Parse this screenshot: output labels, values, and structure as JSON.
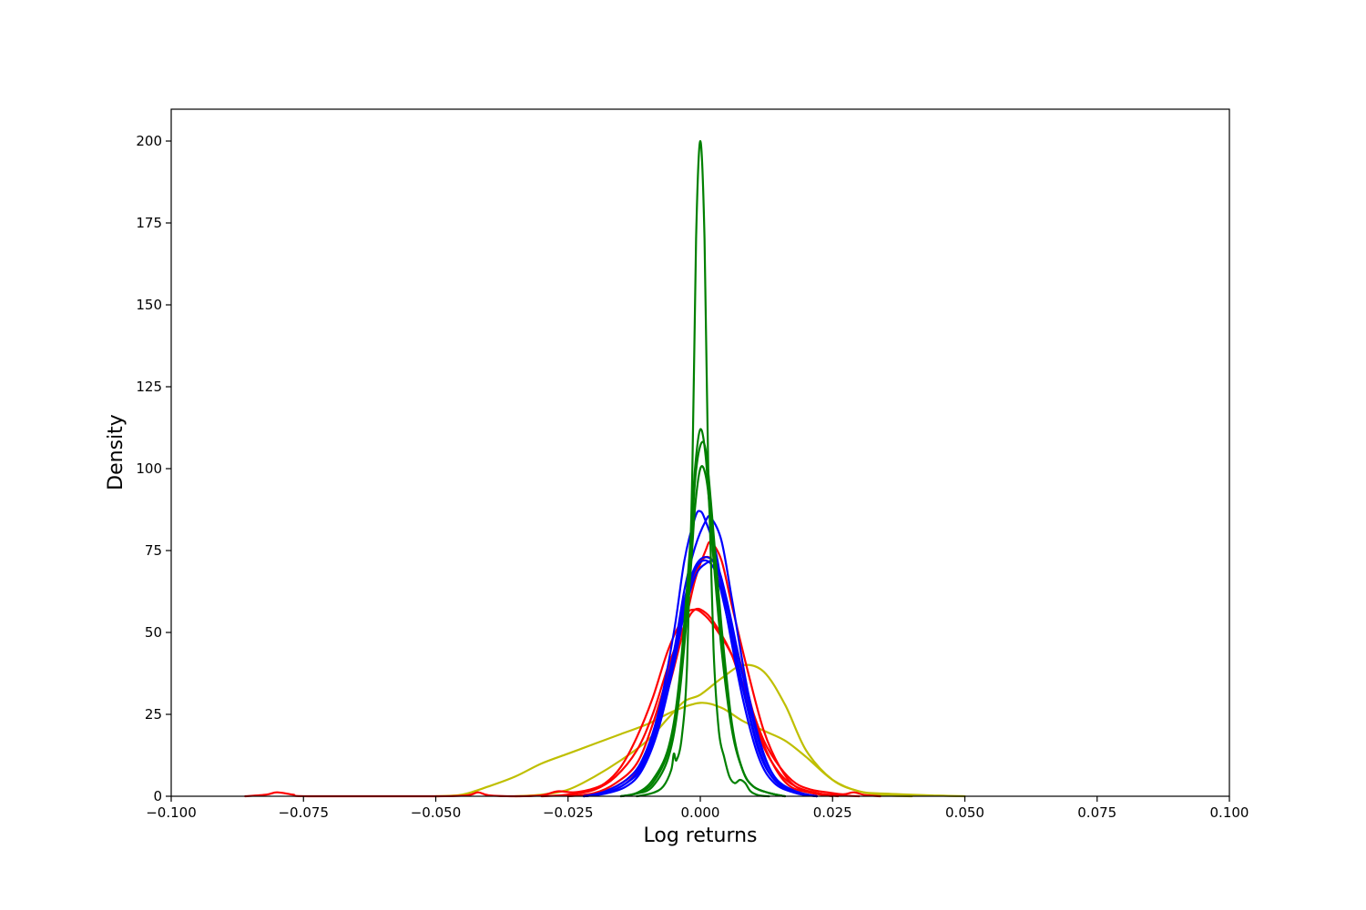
{
  "chart_data": {
    "type": "line",
    "xlabel": "Log returns",
    "ylabel": "Density",
    "xlim": [
      -0.1,
      0.1
    ],
    "ylim": [
      0,
      210
    ],
    "xticks": [
      -0.1,
      -0.075,
      -0.05,
      -0.025,
      0.0,
      0.025,
      0.05,
      0.075,
      0.1
    ],
    "xtick_labels": [
      "−0.100",
      "−0.075",
      "−0.050",
      "−0.025",
      "0.000",
      "0.025",
      "0.050",
      "0.075",
      "0.100"
    ],
    "yticks": [
      0,
      25,
      50,
      75,
      100,
      125,
      150,
      175,
      200
    ],
    "ytick_labels": [
      "0",
      "25",
      "50",
      "75",
      "100",
      "125",
      "150",
      "175",
      "200"
    ],
    "grid": false,
    "legend": "none",
    "series": [
      {
        "color": "#bfbf00",
        "points": [
          [
            -0.035,
            0
          ],
          [
            -0.03,
            0.5
          ],
          [
            -0.025,
            2
          ],
          [
            -0.02,
            6
          ],
          [
            -0.015,
            11
          ],
          [
            -0.01,
            17
          ],
          [
            -0.006,
            24
          ],
          [
            -0.003,
            29
          ],
          [
            0.0,
            31
          ],
          [
            0.004,
            36
          ],
          [
            0.008,
            40
          ],
          [
            0.012,
            38
          ],
          [
            0.016,
            28
          ],
          [
            0.02,
            14
          ],
          [
            0.025,
            5
          ],
          [
            0.03,
            1.5
          ],
          [
            0.035,
            0.3
          ],
          [
            0.04,
            0
          ]
        ]
      },
      {
        "color": "#bfbf00",
        "points": [
          [
            -0.05,
            0
          ],
          [
            -0.045,
            0.5
          ],
          [
            -0.04,
            3
          ],
          [
            -0.035,
            6
          ],
          [
            -0.03,
            10
          ],
          [
            -0.025,
            13
          ],
          [
            -0.02,
            16
          ],
          [
            -0.015,
            19
          ],
          [
            -0.01,
            22
          ],
          [
            -0.005,
            26
          ],
          [
            0.0,
            28.5
          ],
          [
            0.004,
            27
          ],
          [
            0.008,
            23
          ],
          [
            0.012,
            20
          ],
          [
            0.016,
            17
          ],
          [
            0.02,
            12
          ],
          [
            0.025,
            5
          ],
          [
            0.03,
            1.5
          ],
          [
            0.035,
            0.8
          ],
          [
            0.045,
            0.2
          ],
          [
            0.05,
            0
          ]
        ]
      },
      {
        "color": "#ff0000",
        "points": [
          [
            -0.086,
            0
          ],
          [
            -0.082,
            0.5
          ],
          [
            -0.08,
            1.2
          ],
          [
            -0.077,
            0.5
          ],
          [
            -0.074,
            0
          ],
          [
            -0.05,
            0
          ],
          [
            -0.044,
            0.3
          ],
          [
            -0.042,
            1.2
          ],
          [
            -0.04,
            0.3
          ],
          [
            -0.035,
            0
          ],
          [
            -0.03,
            0.3
          ],
          [
            -0.027,
            1.5
          ],
          [
            -0.024,
            1.2
          ],
          [
            -0.021,
            2
          ],
          [
            -0.018,
            4
          ],
          [
            -0.015,
            9
          ],
          [
            -0.012,
            18
          ],
          [
            -0.009,
            30
          ],
          [
            -0.006,
            45
          ],
          [
            -0.003,
            55
          ],
          [
            -0.001,
            57
          ],
          [
            0.001,
            55
          ],
          [
            0.003,
            51
          ],
          [
            0.006,
            43
          ],
          [
            0.009,
            30
          ],
          [
            0.012,
            17
          ],
          [
            0.015,
            9
          ],
          [
            0.018,
            4
          ],
          [
            0.021,
            2
          ],
          [
            0.024,
            1.2
          ],
          [
            0.027,
            0.6
          ],
          [
            0.029,
            1.2
          ],
          [
            0.031,
            0.4
          ],
          [
            0.034,
            0
          ]
        ]
      },
      {
        "color": "#ff0000",
        "points": [
          [
            -0.03,
            0
          ],
          [
            -0.025,
            0.5
          ],
          [
            -0.02,
            2
          ],
          [
            -0.016,
            6
          ],
          [
            -0.012,
            14
          ],
          [
            -0.009,
            25
          ],
          [
            -0.006,
            40
          ],
          [
            -0.003,
            52
          ],
          [
            -0.001,
            57
          ],
          [
            0.001,
            56
          ],
          [
            0.003,
            52
          ],
          [
            0.006,
            43
          ],
          [
            0.009,
            28
          ],
          [
            0.012,
            15
          ],
          [
            0.015,
            7
          ],
          [
            0.018,
            3
          ],
          [
            0.022,
            1
          ],
          [
            0.026,
            0.3
          ],
          [
            0.03,
            0
          ]
        ]
      },
      {
        "color": "#ff0000",
        "points": [
          [
            -0.025,
            0
          ],
          [
            -0.02,
            1
          ],
          [
            -0.016,
            4
          ],
          [
            -0.012,
            10
          ],
          [
            -0.009,
            22
          ],
          [
            -0.006,
            38
          ],
          [
            -0.003,
            56
          ],
          [
            -0.001,
            68
          ],
          [
            0.001,
            73
          ],
          [
            0.003,
            70
          ],
          [
            0.005,
            58
          ],
          [
            0.008,
            38
          ],
          [
            0.011,
            20
          ],
          [
            0.014,
            9
          ],
          [
            0.017,
            3
          ],
          [
            0.021,
            1
          ],
          [
            0.025,
            0
          ]
        ]
      },
      {
        "color": "#ff0000",
        "points": [
          [
            -0.025,
            0
          ],
          [
            -0.02,
            0.8
          ],
          [
            -0.016,
            3
          ],
          [
            -0.012,
            8
          ],
          [
            -0.009,
            18
          ],
          [
            -0.006,
            33
          ],
          [
            -0.003,
            52
          ],
          [
            -0.001,
            66
          ],
          [
            0.001,
            75
          ],
          [
            0.002,
            77.5
          ],
          [
            0.004,
            72
          ],
          [
            0.006,
            58
          ],
          [
            0.009,
            38
          ],
          [
            0.012,
            20
          ],
          [
            0.015,
            9
          ],
          [
            0.018,
            3
          ],
          [
            0.022,
            1
          ],
          [
            0.026,
            0
          ]
        ]
      },
      {
        "color": "#0000ff",
        "points": [
          [
            -0.022,
            0
          ],
          [
            -0.018,
            1.5
          ],
          [
            -0.014,
            5
          ],
          [
            -0.011,
            11
          ],
          [
            -0.008,
            25
          ],
          [
            -0.005,
            50
          ],
          [
            -0.003,
            72
          ],
          [
            -0.001,
            85
          ],
          [
            0.0,
            87
          ],
          [
            0.001,
            84
          ],
          [
            0.003,
            74
          ],
          [
            0.005,
            55
          ],
          [
            0.008,
            30
          ],
          [
            0.011,
            12
          ],
          [
            0.014,
            4
          ],
          [
            0.018,
            1
          ],
          [
            0.022,
            0
          ]
        ]
      },
      {
        "color": "#0000ff",
        "points": [
          [
            -0.022,
            0
          ],
          [
            -0.018,
            1
          ],
          [
            -0.014,
            4
          ],
          [
            -0.011,
            9
          ],
          [
            -0.008,
            22
          ],
          [
            -0.005,
            44
          ],
          [
            -0.003,
            63
          ],
          [
            -0.001,
            76
          ],
          [
            0.001,
            84
          ],
          [
            0.002,
            85
          ],
          [
            0.004,
            78
          ],
          [
            0.006,
            60
          ],
          [
            0.009,
            32
          ],
          [
            0.012,
            13
          ],
          [
            0.015,
            4
          ],
          [
            0.019,
            1
          ],
          [
            0.022,
            0
          ]
        ]
      },
      {
        "color": "#0000ff",
        "points": [
          [
            -0.022,
            0
          ],
          [
            -0.018,
            1
          ],
          [
            -0.014,
            4
          ],
          [
            -0.011,
            10
          ],
          [
            -0.008,
            24
          ],
          [
            -0.005,
            44
          ],
          [
            -0.003,
            60
          ],
          [
            -0.001,
            70
          ],
          [
            0.001,
            73
          ],
          [
            0.003,
            70
          ],
          [
            0.005,
            58
          ],
          [
            0.008,
            34
          ],
          [
            0.011,
            15
          ],
          [
            0.014,
            5
          ],
          [
            0.018,
            1.5
          ],
          [
            0.022,
            0
          ]
        ]
      },
      {
        "color": "#0000ff",
        "points": [
          [
            -0.022,
            0
          ],
          [
            -0.018,
            0.8
          ],
          [
            -0.014,
            3
          ],
          [
            -0.011,
            8
          ],
          [
            -0.008,
            20
          ],
          [
            -0.005,
            40
          ],
          [
            -0.003,
            56
          ],
          [
            -0.001,
            67
          ],
          [
            0.001,
            71
          ],
          [
            0.003,
            71
          ],
          [
            0.005,
            60
          ],
          [
            0.008,
            37
          ],
          [
            0.011,
            17
          ],
          [
            0.014,
            6
          ],
          [
            0.018,
            1.5
          ],
          [
            0.022,
            0
          ]
        ]
      },
      {
        "color": "#0000ff",
        "points": [
          [
            -0.022,
            0
          ],
          [
            -0.018,
            1
          ],
          [
            -0.014,
            4
          ],
          [
            -0.011,
            9
          ],
          [
            -0.008,
            22
          ],
          [
            -0.005,
            42
          ],
          [
            -0.003,
            58
          ],
          [
            -0.001,
            69
          ],
          [
            0.001,
            72
          ],
          [
            0.003,
            68
          ],
          [
            0.005,
            55
          ],
          [
            0.008,
            33
          ],
          [
            0.011,
            14
          ],
          [
            0.014,
            5
          ],
          [
            0.018,
            1
          ],
          [
            0.022,
            0
          ]
        ]
      },
      {
        "color": "#008000",
        "points": [
          [
            -0.012,
            0
          ],
          [
            -0.009,
            1
          ],
          [
            -0.007,
            3
          ],
          [
            -0.0055,
            8
          ],
          [
            -0.005,
            13
          ],
          [
            -0.0045,
            11
          ],
          [
            -0.0035,
            18
          ],
          [
            -0.0025,
            40
          ],
          [
            -0.0015,
            100
          ],
          [
            -0.0008,
            170
          ],
          [
            0.0,
            200
          ],
          [
            0.0008,
            170
          ],
          [
            0.0015,
            100
          ],
          [
            0.0025,
            45
          ],
          [
            0.0035,
            20
          ],
          [
            0.0045,
            12
          ],
          [
            0.0055,
            6
          ],
          [
            0.0065,
            4
          ],
          [
            0.0075,
            5
          ],
          [
            0.0085,
            4
          ],
          [
            0.0095,
            1.5
          ],
          [
            0.011,
            0.3
          ],
          [
            0.013,
            0
          ]
        ]
      },
      {
        "color": "#008000",
        "points": [
          [
            -0.015,
            0
          ],
          [
            -0.012,
            1
          ],
          [
            -0.009,
            5
          ],
          [
            -0.006,
            15
          ],
          [
            -0.004,
            35
          ],
          [
            -0.002,
            75
          ],
          [
            -0.001,
            100
          ],
          [
            0.0,
            112
          ],
          [
            0.001,
            104
          ],
          [
            0.002,
            82
          ],
          [
            0.004,
            45
          ],
          [
            0.006,
            20
          ],
          [
            0.008,
            8
          ],
          [
            0.01,
            3
          ],
          [
            0.013,
            1
          ],
          [
            0.016,
            0
          ]
        ]
      },
      {
        "color": "#008000",
        "points": [
          [
            -0.015,
            0
          ],
          [
            -0.012,
            1
          ],
          [
            -0.009,
            4
          ],
          [
            -0.006,
            14
          ],
          [
            -0.004,
            33
          ],
          [
            -0.002,
            70
          ],
          [
            -0.001,
            96
          ],
          [
            0.0,
            107
          ],
          [
            0.001,
            106
          ],
          [
            0.002,
            90
          ],
          [
            0.004,
            52
          ],
          [
            0.006,
            22
          ],
          [
            0.008,
            8
          ],
          [
            0.01,
            3
          ],
          [
            0.013,
            1
          ],
          [
            0.016,
            0
          ]
        ]
      },
      {
        "color": "#008000",
        "points": [
          [
            -0.015,
            0
          ],
          [
            -0.012,
            0.8
          ],
          [
            -0.009,
            3
          ],
          [
            -0.006,
            12
          ],
          [
            -0.004,
            30
          ],
          [
            -0.002,
            65
          ],
          [
            -0.001,
            88
          ],
          [
            0.0,
            100
          ],
          [
            0.001,
            98
          ],
          [
            0.002,
            85
          ],
          [
            0.004,
            50
          ],
          [
            0.006,
            21
          ],
          [
            0.008,
            8
          ],
          [
            0.01,
            3
          ],
          [
            0.013,
            1
          ],
          [
            0.016,
            0
          ]
        ]
      }
    ]
  }
}
